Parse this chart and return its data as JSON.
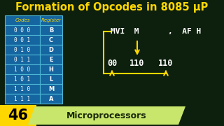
{
  "title": "Formation of Opcodes in 8085 μP",
  "title_color": "#FFD700",
  "bg_color": "#0d1f0d",
  "table_codes": [
    "0 0 0",
    "0 0 1",
    "0 1 0",
    "0 1 1",
    "1 0 0",
    "1 0 1",
    "1 1 0",
    "1 1 1"
  ],
  "table_regs": [
    "B",
    "C",
    "D",
    "E",
    "H",
    "L",
    "M",
    "A"
  ],
  "table_header": [
    "Codes",
    "Register"
  ],
  "table_bg": "#1565a0",
  "table_border": "#4db8d4",
  "table_text": "#ffffff",
  "table_header_text": "#FFD700",
  "mvi_text_color": "#ffffff",
  "opcode_text_color": "#ffffff",
  "arrow_color": "#FFD700",
  "bracket_color": "#FFD700",
  "bottom_bar_color": "#FFD700",
  "bottom_num": "46",
  "bottom_label": "Microprocessors",
  "bottom_label_bg": "#c8e66c",
  "bottom_text_color": "#1a2a0a"
}
